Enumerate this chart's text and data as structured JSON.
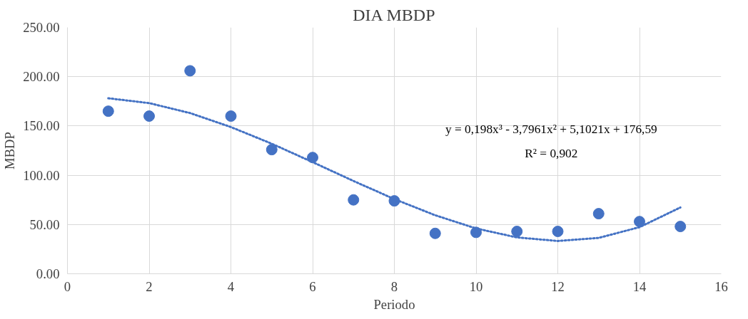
{
  "chart_data": {
    "type": "scatter",
    "title": "DIA MBDP",
    "xlabel": "Periodo",
    "ylabel": "MBDP",
    "xlim": [
      0,
      16
    ],
    "xticks": [
      0,
      2,
      4,
      6,
      8,
      10,
      12,
      14,
      16
    ],
    "ylim": [
      0,
      250
    ],
    "yticks": [
      {
        "value": 0,
        "label": "0.00"
      },
      {
        "value": 50,
        "label": "50.00"
      },
      {
        "value": 100,
        "label": "100.00"
      },
      {
        "value": 150,
        "label": "150.00"
      },
      {
        "value": 200,
        "label": "200.00"
      },
      {
        "value": 250,
        "label": "250.00"
      }
    ],
    "grid": true,
    "series": [
      {
        "color": "#4472c4",
        "marker": "circle",
        "x": [
          1,
          2,
          3,
          4,
          5,
          6,
          7,
          8,
          9,
          10,
          11,
          12,
          13,
          14,
          15
        ],
        "values": [
          165,
          160,
          206,
          160,
          126,
          118,
          75,
          74,
          41,
          42,
          43,
          43,
          61,
          53,
          48
        ]
      },
      {
        "type": "line",
        "color": "#4472c4",
        "line_style": "dotted",
        "marker": "none",
        "x": [
          1,
          2,
          3,
          4,
          5,
          6,
          7,
          8,
          9,
          10,
          11,
          12,
          13,
          14,
          15
        ],
        "values": [
          178.1,
          173.2,
          163.1,
          148.9,
          132.0,
          113.3,
          94.2,
          75.8,
          59.4,
          46.0,
          36.9,
          33.3,
          36.4,
          47.3,
          67.3
        ]
      }
    ],
    "annotations": [
      "y = 0,198x³ - 3,7961x² + 5,1021x + 176,59",
      "R² = 0,902"
    ]
  }
}
